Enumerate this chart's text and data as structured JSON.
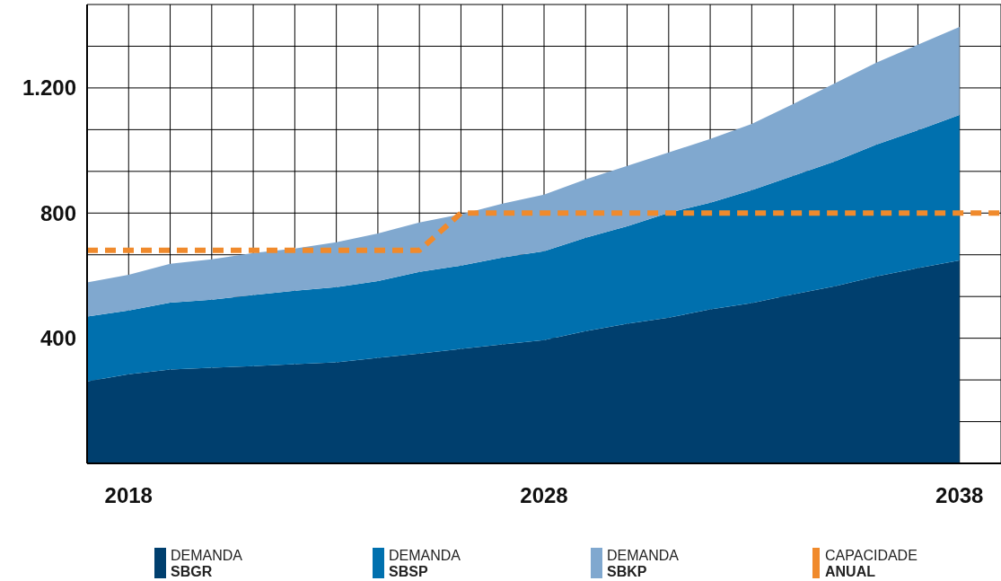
{
  "chart_data": {
    "type": "area",
    "stacked": true,
    "x": [
      2017,
      2018,
      2019,
      2020,
      2021,
      2022,
      2023,
      2024,
      2025,
      2026,
      2027,
      2028,
      2029,
      2030,
      2031,
      2032,
      2033,
      2034,
      2035,
      2036,
      2037,
      2038
    ],
    "series": [
      {
        "name": "DEMANDA SBGR",
        "color": "#003f6e",
        "values": [
          262,
          285,
          300,
          306,
          311,
          317,
          323,
          337,
          351,
          366,
          380,
          394,
          423,
          446,
          466,
          492,
          512,
          540,
          566,
          598,
          624,
          649
        ]
      },
      {
        "name": "DEMANDA SBSP",
        "color": "#0070ae",
        "values": [
          207,
          204,
          214,
          217,
          227,
          235,
          240,
          246,
          261,
          266,
          278,
          284,
          298,
          312,
          335,
          341,
          361,
          379,
          399,
          421,
          441,
          465
        ]
      },
      {
        "name": "DEMANDA SBKP",
        "color": "#80a8cf",
        "values": [
          109,
          114,
          124,
          129,
          134,
          135,
          144,
          152,
          158,
          164,
          172,
          181,
          187,
          193,
          193,
          204,
          212,
          230,
          250,
          262,
          273,
          281
        ]
      },
      {
        "name": "CAPACIDADE ANUAL",
        "type": "line",
        "line_style": "dashed",
        "color": "#f08a2c",
        "x": [
          2017,
          2025,
          2026,
          2039
        ],
        "values": [
          681,
          681,
          800,
          800
        ]
      }
    ],
    "xlim": [
      2017,
      2039
    ],
    "xticks": [
      {
        "value": 2017,
        "label": null
      },
      2018,
      {
        "value": 2019,
        "label": null
      },
      {
        "value": 2020,
        "label": null
      },
      {
        "value": 2021,
        "label": null
      },
      {
        "value": 2022,
        "label": null
      },
      {
        "value": 2023,
        "label": null
      },
      {
        "value": 2024,
        "label": null
      },
      {
        "value": 2025,
        "label": null
      },
      {
        "value": 2026,
        "label": null
      },
      {
        "value": 2027,
        "label": null
      },
      2028,
      {
        "value": 2029,
        "label": null
      },
      {
        "value": 2030,
        "label": null
      },
      {
        "value": 2031,
        "label": null
      },
      {
        "value": 2032,
        "label": null
      },
      {
        "value": 2033,
        "label": null
      },
      {
        "value": 2034,
        "label": null
      },
      {
        "value": 2035,
        "label": null
      },
      {
        "value": 2036,
        "label": null
      },
      {
        "value": 2037,
        "label": null
      },
      2038,
      {
        "value": 2039,
        "label": null
      }
    ],
    "ylim": [
      0,
      1466.7
    ],
    "yticks": [
      {
        "value": 133.3,
        "label": null
      },
      {
        "value": 266.7,
        "label": null
      },
      400,
      {
        "value": 533.3,
        "label": null
      },
      {
        "value": 666.7,
        "label": null
      },
      800,
      {
        "value": 933.3,
        "label": null
      },
      {
        "value": 1066.7,
        "label": null
      },
      {
        "value": 1200,
        "label": "1.200"
      },
      {
        "value": 1333.3,
        "label": null
      },
      {
        "value": 1466.7,
        "label": null
      }
    ],
    "grid": true,
    "legend": "bottom"
  }
}
